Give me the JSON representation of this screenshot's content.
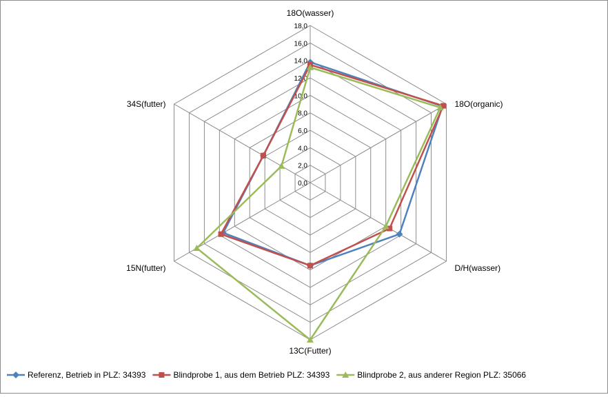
{
  "chart_data": {
    "type": "radar",
    "axes": [
      "18O(wasser)",
      "18O(organic)",
      "D/H(wasser)",
      "13C(Futter)",
      "15N(futter)",
      "34S(futter)"
    ],
    "rmin": 0,
    "rmax": 18,
    "tick_step": 2,
    "tick_labels": [
      "0,0",
      "2,0",
      "4,0",
      "6,0",
      "8,0",
      "10,0",
      "12,0",
      "14,0",
      "16,0",
      "18,0"
    ],
    "grid": true,
    "legend_position": "bottom",
    "series": [
      {
        "name": "Referenz, Betrieb in PLZ: 34393",
        "color": "#4F81BD",
        "marker": "diamond",
        "values": [
          13.8,
          17.5,
          11.8,
          9.5,
          11.5,
          6.2
        ]
      },
      {
        "name": "Blindprobe 1, aus dem Betrieb PLZ: 34393",
        "color": "#C0504D",
        "marker": "square",
        "values": [
          13.5,
          17.6,
          10.5,
          9.5,
          11.8,
          6.2
        ]
      },
      {
        "name": "Blindprobe 2, aus anderer Region PLZ: 35066",
        "color": "#9BBB59",
        "marker": "triangle",
        "values": [
          13.2,
          17.2,
          10.0,
          18.0,
          15.0,
          3.8
        ]
      }
    ]
  }
}
